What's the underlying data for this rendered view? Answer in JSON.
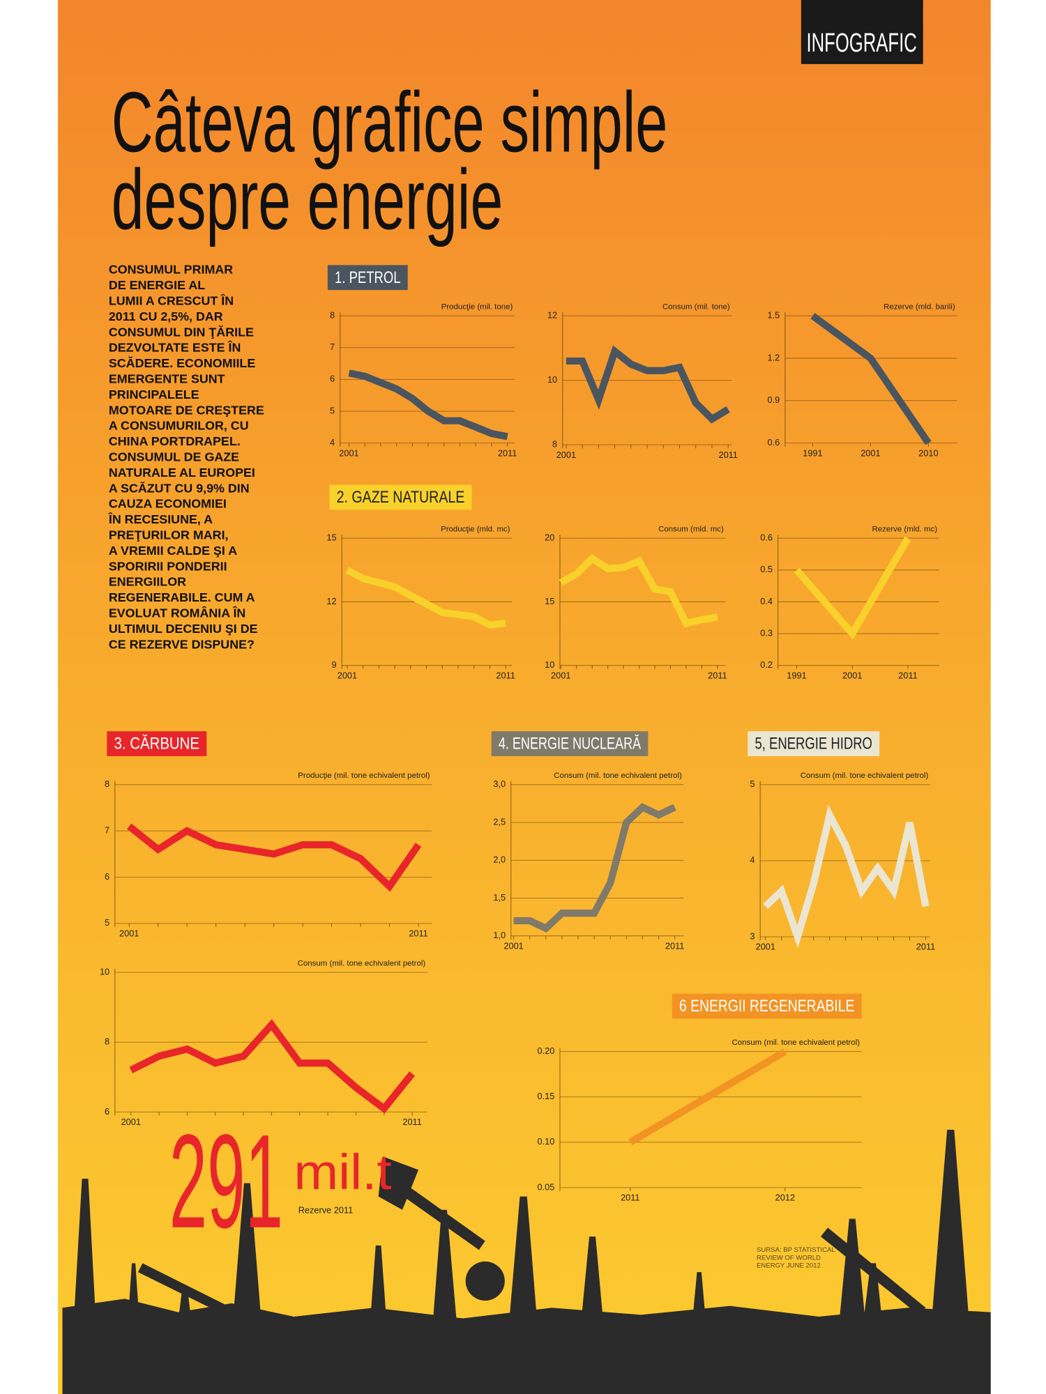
{
  "header": {
    "tag": "INFOGRAFIC",
    "title": [
      "Câteva grafice simple",
      "despre energie"
    ],
    "intro": [
      "CONSUMUL PRIMAR",
      "DE ENERGIE AL",
      "LUMII A CRESCUT ÎN",
      "2011 CU 2,5%, DAR",
      "CONSUMUL DIN ŢĂRILE",
      "DEZVOLTATE ESTE ÎN",
      "SCĂDERE. ECONOMIILE",
      "EMERGENTE SUNT",
      "PRINCIPALELE",
      "MOTOARE DE CREŞTERE",
      "A CONSUMURILOR, CU",
      "CHINA PORTDRAPEL.",
      "CONSUMUL DE GAZE",
      "NATURALE AL EUROPEI",
      "A SCĂZUT CU 9,9% DIN",
      "CAUZA ECONOMIEI",
      "ÎN RECESIUNE, A",
      "PREŢURILOR MARI,",
      "A VREMII CALDE ŞI A",
      "SPORIRII PONDERII",
      "ENERGIILOR",
      "REGENERABILE. CUM A",
      "EVOLUAT ROMÂNIA ÎN",
      "ULTIMUL DECENIU ŞI DE",
      "CE REZERVE DISPUNE?"
    ]
  },
  "sections": [
    "1. PETROL",
    "2. GAZE NATURALE",
    "3. CĂRBUNE",
    "4. ENERGIE NUCLEARĂ",
    "5, ENERGIE HIDRO",
    "6  ENERGII REGENERABILE"
  ],
  "chart_data": [
    {
      "type": "line",
      "ylabel": "Producţie (mil. tone)",
      "categories": [
        "2001",
        null,
        null,
        null,
        null,
        null,
        null,
        null,
        null,
        null,
        "2011"
      ],
      "values": [
        6.2,
        6.1,
        5.9,
        5.7,
        5.4,
        5.0,
        4.7,
        4.7,
        4.5,
        4.3,
        4.2
      ],
      "color": "#4a5560",
      "ylim": [
        4,
        8
      ],
      "yticks": [
        4,
        5,
        6,
        7,
        8
      ],
      "grid": true
    },
    {
      "type": "line",
      "ylabel": "Consum (mil. tone)",
      "categories": [
        "2001",
        null,
        null,
        null,
        null,
        null,
        null,
        null,
        null,
        null,
        "2011"
      ],
      "values": [
        10.6,
        10.6,
        9.4,
        10.9,
        10.5,
        10.3,
        10.3,
        10.4,
        9.3,
        8.8,
        9.1
      ],
      "color": "#4a5560",
      "ylim": [
        8,
        12
      ],
      "yticks": [
        8,
        10,
        12
      ],
      "grid": true
    },
    {
      "type": "line",
      "ylabel": "Rezerve (mld. barili)",
      "categories": [
        "1991",
        "2001",
        "2010"
      ],
      "values": [
        1.5,
        1.2,
        0.6
      ],
      "color": "#4a5560",
      "ylim": [
        0.6,
        1.5
      ],
      "yticks": [
        0.6,
        0.9,
        1.2,
        1.5
      ],
      "grid": true
    },
    {
      "type": "line",
      "ylabel": "Producţie (mld. mc)",
      "categories": [
        "2001",
        null,
        null,
        null,
        null,
        null,
        null,
        null,
        null,
        null,
        "2011"
      ],
      "values": [
        13.5,
        13.1,
        12.9,
        12.7,
        12.3,
        11.9,
        11.5,
        11.4,
        11.3,
        10.9,
        11.0
      ],
      "color": "#f8d12b",
      "ylim": [
        9,
        15
      ],
      "yticks": [
        9,
        12,
        15
      ],
      "grid": true
    },
    {
      "type": "line",
      "ylabel": "Consum (mld. mc)",
      "categories": [
        "2001",
        null,
        null,
        null,
        null,
        null,
        null,
        null,
        null,
        null,
        "2011"
      ],
      "values": [
        16.5,
        17.2,
        18.4,
        17.6,
        17.7,
        18.2,
        16.0,
        15.8,
        13.3,
        13.6,
        13.8
      ],
      "color": "#f8d12b",
      "ylim": [
        10,
        20
      ],
      "yticks": [
        10,
        15,
        20
      ],
      "grid": true
    },
    {
      "type": "line",
      "ylabel": "Rezerve (mld. mc)",
      "categories": [
        "1991",
        "2001",
        "2011"
      ],
      "values": [
        0.5,
        0.3,
        0.6
      ],
      "color": "#f8d12b",
      "ylim": [
        0.2,
        0.6
      ],
      "yticks": [
        0.2,
        0.3,
        0.4,
        0.5,
        0.6
      ],
      "grid": true
    },
    {
      "type": "line",
      "ylabel": "Producţie (mil. tone echivalent petrol)",
      "categories": [
        "2001",
        null,
        null,
        null,
        null,
        null,
        null,
        null,
        null,
        null,
        "2011"
      ],
      "values": [
        7.1,
        6.6,
        7.0,
        6.7,
        6.6,
        6.5,
        6.7,
        6.7,
        6.4,
        5.8,
        6.7
      ],
      "color": "#e8262a",
      "ylim": [
        5,
        8
      ],
      "yticks": [
        5,
        6,
        7,
        8
      ],
      "grid": true
    },
    {
      "type": "line",
      "ylabel": "Consum (mil. tone echivalent petrol)",
      "categories": [
        "2001",
        null,
        null,
        null,
        null,
        null,
        null,
        null,
        null,
        null,
        "2011"
      ],
      "values": [
        7.2,
        7.6,
        7.8,
        7.4,
        7.6,
        8.5,
        7.4,
        7.4,
        6.7,
        6.1,
        7.1
      ],
      "color": "#e8262a",
      "ylim": [
        6,
        10
      ],
      "yticks": [
        6,
        8,
        10
      ],
      "grid": true
    },
    {
      "type": "line",
      "ylabel": "Consum (mil. tone echivalent petrol)",
      "categories": [
        "2001",
        null,
        null,
        null,
        null,
        null,
        null,
        null,
        null,
        null,
        "2011"
      ],
      "values": [
        1.2,
        1.2,
        1.1,
        1.3,
        1.3,
        1.3,
        1.7,
        2.5,
        2.7,
        2.6,
        2.7
      ],
      "color": "#7f7a6a",
      "ylim": [
        1.0,
        3.0
      ],
      "yticks": [
        {
          "value": 1.0,
          "label": "1,0"
        },
        {
          "value": 1.5,
          "label": "1,5"
        },
        {
          "value": 2.0,
          "label": "2,0"
        },
        {
          "value": 2.5,
          "label": "2,5"
        },
        {
          "value": 3.0,
          "label": "3,0"
        }
      ],
      "grid": true
    },
    {
      "type": "line",
      "ylabel": "Consum (mil. tone echivalent petrol)",
      "categories": [
        "2001",
        null,
        null,
        null,
        null,
        null,
        null,
        null,
        null,
        null,
        "2011"
      ],
      "values": [
        3.4,
        3.6,
        3.0,
        3.7,
        4.6,
        4.2,
        3.6,
        3.9,
        3.6,
        4.5,
        3.4
      ],
      "color": "#ebe6d2",
      "ylim": [
        3,
        5
      ],
      "yticks": [
        3,
        4,
        5
      ],
      "grid": true
    },
    {
      "type": "line",
      "ylabel": "Consum (mil. tone echivalent petrol)",
      "categories": [
        "2011",
        "2012"
      ],
      "values": [
        0.1,
        0.2
      ],
      "color": "#f39323",
      "ylim": [
        0.05,
        0.2
      ],
      "yticks": [
        0.05,
        {
          "value": 0.1,
          "label": "0.10"
        },
        0.15,
        {
          "value": 0.2,
          "label": "0.20"
        }
      ],
      "grid": true
    }
  ],
  "highlight": {
    "value": 291,
    "unit": "mil.t",
    "label": "Rezerve 2011"
  },
  "source": [
    "SURSA: BP STATISTICAL",
    "REVIEW OF WORLD",
    "ENERGY JUNE 2012"
  ]
}
